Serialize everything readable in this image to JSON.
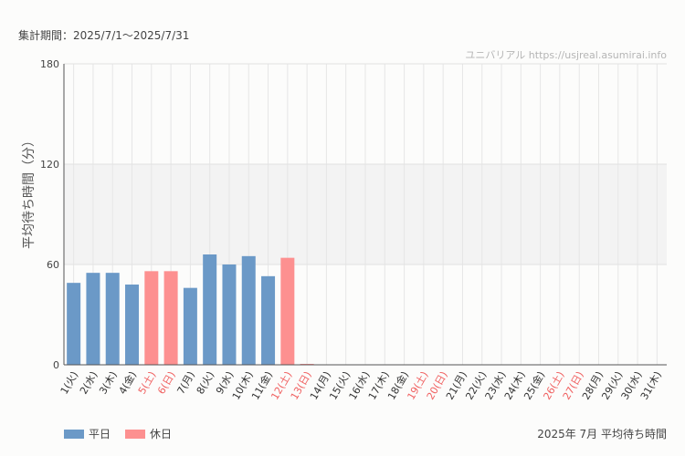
{
  "period": "集計期間：2025/7/1～2025/7/31",
  "watermark": "ユニバリアル  https://usjreal.asumirai.info",
  "chart_data": {
    "type": "bar",
    "title": "2025年 7月 平均待ち時間",
    "ylabel": "平均待ち時間（分）",
    "xlabel": "",
    "ylim": [
      0,
      180
    ],
    "yticks": [
      "0",
      "60",
      "120",
      "180"
    ],
    "grid": true,
    "legend_position": "bottom-left",
    "categories": [
      "1(火)",
      "2(水)",
      "3(木)",
      "4(金)",
      "5(土)",
      "6(日)",
      "7(月)",
      "8(火)",
      "9(水)",
      "10(木)",
      "11(金)",
      "12(土)",
      "13(日)",
      "14(月)",
      "15(火)",
      "16(水)",
      "17(木)",
      "18(金)",
      "19(土)",
      "20(日)",
      "21(月)",
      "22(火)",
      "23(水)",
      "24(木)",
      "25(金)",
      "26(土)",
      "27(日)",
      "28(月)",
      "29(火)",
      "30(水)",
      "31(木)"
    ],
    "values": [
      49,
      55,
      55,
      48,
      56,
      56,
      46,
      66,
      60,
      65,
      53,
      64,
      0,
      null,
      null,
      null,
      null,
      null,
      null,
      null,
      null,
      null,
      null,
      null,
      null,
      null,
      null,
      null,
      null,
      null,
      null
    ],
    "holiday": [
      false,
      false,
      false,
      false,
      true,
      true,
      false,
      false,
      false,
      false,
      false,
      true,
      true,
      false,
      false,
      false,
      false,
      false,
      true,
      true,
      false,
      false,
      false,
      false,
      false,
      true,
      true,
      false,
      false,
      false,
      false
    ],
    "series": [
      {
        "name": "平日",
        "color": "#6b99c7"
      },
      {
        "name": "休日",
        "color": "#fd9090"
      }
    ],
    "holiday_label_color": "#f06060",
    "weekday_label_color": "#333333",
    "band_color": "#f3f3f3"
  }
}
